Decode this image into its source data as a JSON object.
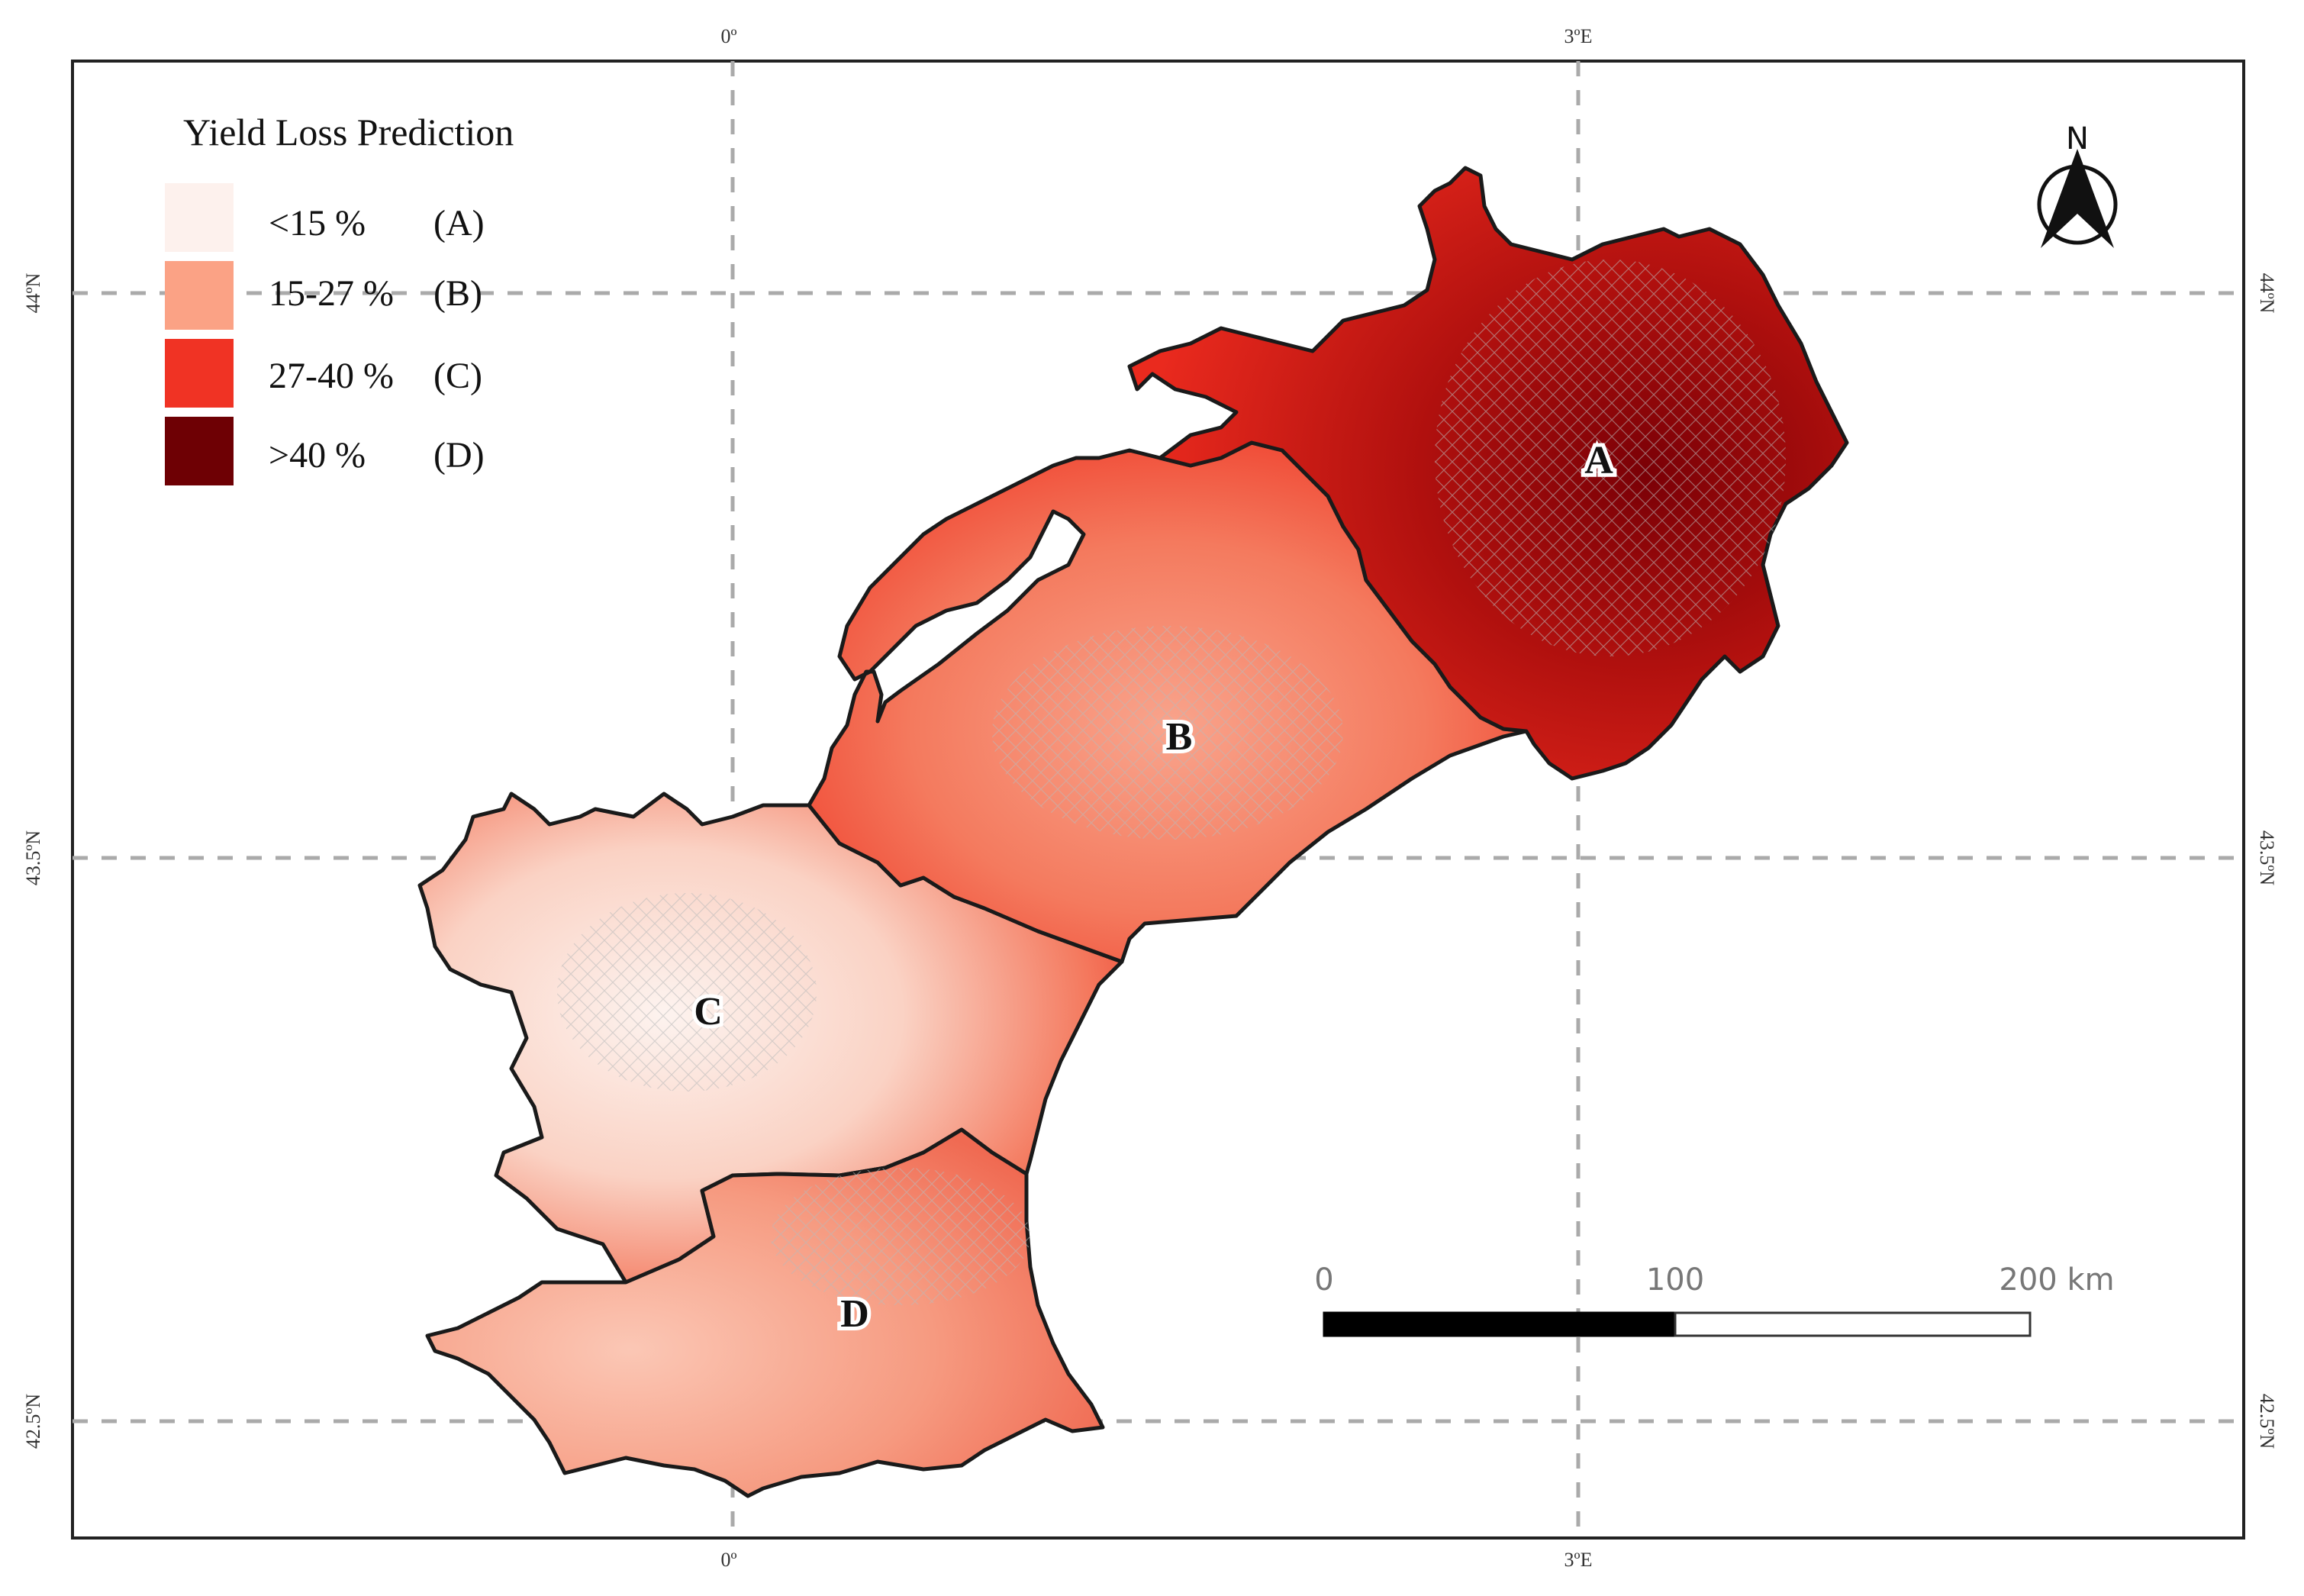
{
  "legend": {
    "title": "Yield Loss Prediction",
    "items": [
      {
        "range": "<15 %",
        "zone": "(A)",
        "color": "#fdf1ed"
      },
      {
        "range": "15-27 %",
        "zone": "(B)",
        "color": "#fba285"
      },
      {
        "range": "27-40 %",
        "zone": "(C)",
        "color": "#f03324"
      },
      {
        "range": ">40 %",
        "zone": "(D)",
        "color": "#6e0004"
      }
    ]
  },
  "graticule": {
    "lon_top": [
      "0º",
      "3ºE"
    ],
    "lon_bottom": [
      "0º",
      "3ºE"
    ],
    "lat_left": [
      "44ºN",
      "43.5ºN",
      "42.5ºN"
    ],
    "lat_right": [
      "44ºN",
      "43.5ºN",
      "42.5ºN"
    ]
  },
  "regions": {
    "a": {
      "label": "A"
    },
    "b": {
      "label": "B"
    },
    "c": {
      "label": "C"
    },
    "d": {
      "label": "D"
    }
  },
  "north_arrow": {
    "label": "N"
  },
  "scale_bar": {
    "ticks": [
      "0",
      "100",
      "200 km"
    ]
  },
  "colors": {
    "frame": "#222222",
    "grid": "#aaaaaa",
    "border": "#1a1a1a",
    "pale": "#fdf1ed",
    "salmon": "#fba285",
    "red": "#f03324",
    "dark": "#6e0004"
  }
}
